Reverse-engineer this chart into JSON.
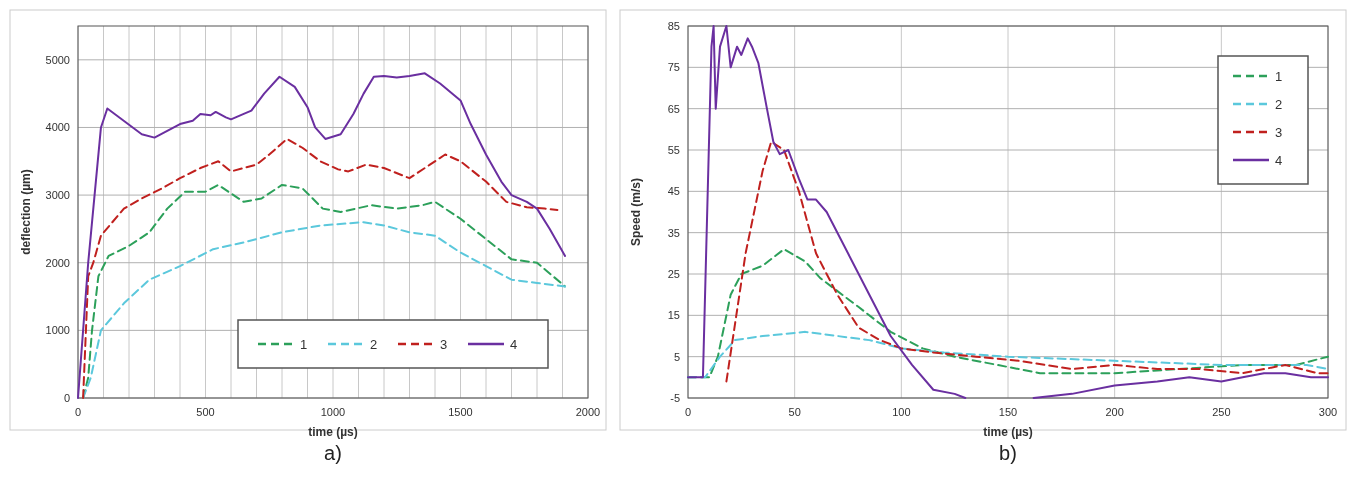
{
  "chart_data": [
    {
      "type": "line",
      "xlabel": "time (µs)",
      "ylabel": "deflection (µm)",
      "annotations": [
        "a)"
      ],
      "xlim": [
        0,
        2000
      ],
      "ylim": [
        0,
        5500
      ],
      "xticks": [
        0,
        {
          "value": 100,
          "label": null
        },
        {
          "value": 200,
          "label": null
        },
        {
          "value": 300,
          "label": null
        },
        {
          "value": 400,
          "label": null
        },
        500,
        {
          "value": 600,
          "label": null
        },
        {
          "value": 700,
          "label": null
        },
        {
          "value": 800,
          "label": null
        },
        {
          "value": 900,
          "label": null
        },
        1000,
        {
          "value": 1100,
          "label": null
        },
        {
          "value": 1200,
          "label": null
        },
        {
          "value": 1300,
          "label": null
        },
        {
          "value": 1400,
          "label": null
        },
        1500,
        {
          "value": 1600,
          "label": null
        },
        {
          "value": 1700,
          "label": null
        },
        {
          "value": 1800,
          "label": null
        },
        {
          "value": 1900,
          "label": null
        },
        2000
      ],
      "yticks": [
        0,
        1000,
        2000,
        3000,
        4000,
        5000
      ],
      "grid": true,
      "legend": "bottom",
      "series": [
        {
          "name": "1",
          "color": "#2ca05a",
          "line_style": "dashed",
          "x": [
            20,
            40,
            55,
            80,
            120,
            200,
            280,
            350,
            420,
            500,
            550,
            650,
            720,
            800,
            880,
            960,
            1030,
            1150,
            1250,
            1350,
            1400,
            1500,
            1600,
            1700,
            1800,
            1910
          ],
          "values": [
            0,
            300,
            1000,
            1800,
            2100,
            2250,
            2450,
            2800,
            3050,
            3050,
            3150,
            2900,
            2950,
            3150,
            3100,
            2800,
            2750,
            2850,
            2800,
            2850,
            2900,
            2650,
            2350,
            2050,
            2000,
            1650
          ]
        },
        {
          "name": "2",
          "color": "#5bc8dc",
          "line_style": "dashed",
          "x": [
            20,
            50,
            90,
            180,
            280,
            400,
            530,
            650,
            800,
            950,
            1120,
            1200,
            1300,
            1400,
            1500,
            1600,
            1700,
            1800,
            1910
          ],
          "values": [
            0,
            300,
            1000,
            1400,
            1750,
            1950,
            2200,
            2300,
            2450,
            2550,
            2600,
            2550,
            2450,
            2400,
            2150,
            1950,
            1750,
            1700,
            1650
          ]
        },
        {
          "name": "3",
          "color": "#c0201e",
          "line_style": "dashed",
          "x": [
            20,
            40,
            60,
            90,
            180,
            250,
            330,
            400,
            480,
            550,
            600,
            700,
            750,
            820,
            880,
            950,
            1020,
            1060,
            1130,
            1200,
            1300,
            1380,
            1440,
            1500,
            1600,
            1680,
            1760,
            1830,
            1880
          ],
          "values": [
            0,
            1800,
            2000,
            2400,
            2800,
            2950,
            3100,
            3250,
            3400,
            3500,
            3350,
            3450,
            3600,
            3830,
            3700,
            3500,
            3380,
            3350,
            3450,
            3400,
            3250,
            3450,
            3600,
            3500,
            3200,
            2900,
            2820,
            2800,
            2780
          ]
        },
        {
          "name": "4",
          "color": "#6a2fa0",
          "line_style": "solid",
          "x": [
            0,
            40,
            90,
            115,
            250,
            300,
            350,
            400,
            450,
            480,
            520,
            540,
            580,
            600,
            650,
            680,
            730,
            790,
            850,
            900,
            930,
            970,
            1030,
            1080,
            1120,
            1160,
            1200,
            1250,
            1300,
            1360,
            1420,
            1500,
            1540,
            1600,
            1660,
            1700,
            1760,
            1800,
            1850,
            1910
          ],
          "values": [
            0,
            2000,
            4000,
            4280,
            3900,
            3850,
            3950,
            4050,
            4100,
            4200,
            4180,
            4230,
            4150,
            4120,
            4200,
            4250,
            4500,
            4750,
            4600,
            4300,
            4000,
            3830,
            3900,
            4200,
            4500,
            4750,
            4760,
            4740,
            4760,
            4800,
            4650,
            4400,
            4050,
            3600,
            3200,
            3000,
            2900,
            2800,
            2500,
            2100
          ]
        }
      ]
    },
    {
      "type": "line",
      "xlabel": "time (µs)",
      "ylabel": "Speed (m/s)",
      "annotations": [
        "b)"
      ],
      "xlim": [
        0,
        300
      ],
      "ylim": [
        -5,
        85
      ],
      "xticks": [
        0,
        50,
        100,
        150,
        200,
        250,
        300
      ],
      "yticks": [
        -5,
        5,
        15,
        25,
        35,
        45,
        55,
        65,
        75,
        85
      ],
      "grid": true,
      "legend": "top right",
      "series": [
        {
          "name": "1",
          "color": "#2ca05a",
          "line_style": "dashed",
          "x": [
            0,
            10,
            14,
            20,
            25,
            35,
            45,
            55,
            62,
            80,
            95,
            110,
            125,
            145,
            165,
            200,
            230,
            260,
            285,
            300
          ],
          "values": [
            0,
            0,
            5,
            20,
            25,
            27,
            31,
            28,
            24,
            17,
            11,
            7,
            5,
            3,
            1,
            1,
            2,
            3,
            3,
            5
          ]
        },
        {
          "name": "2",
          "color": "#5bc8dc",
          "line_style": "dashed",
          "x": [
            0,
            8,
            15,
            22,
            35,
            55,
            70,
            85,
            100,
            120,
            150,
            200,
            250,
            290,
            300
          ],
          "values": [
            0,
            0,
            5,
            9,
            10,
            11,
            10,
            9,
            7,
            6,
            5,
            4,
            3,
            3,
            2
          ]
        },
        {
          "name": "3",
          "color": "#c0201e",
          "line_style": "dashed",
          "x": [
            18,
            27,
            35,
            39,
            45,
            52,
            60,
            70,
            80,
            90,
            100,
            115,
            135,
            155,
            180,
            200,
            220,
            240,
            260,
            280,
            295,
            300
          ],
          "values": [
            -1,
            30,
            50,
            57,
            55,
            45,
            30,
            20,
            12,
            9,
            7,
            6,
            5,
            4,
            2,
            3,
            2,
            2,
            1,
            3,
            1,
            1
          ]
        },
        {
          "name": "4",
          "color": "#6a2fa0",
          "line_style": "solid",
          "x": [
            0,
            7,
            11,
            12,
            13,
            15,
            18,
            20,
            23,
            25,
            28,
            30,
            33,
            37,
            40,
            43,
            47,
            52,
            56,
            60,
            65,
            75,
            85,
            95,
            105,
            115,
            125,
            130,
            145,
            162,
            180,
            200,
            220,
            235,
            250,
            260,
            270,
            280,
            292,
            300
          ],
          "values": [
            0,
            0,
            80,
            85,
            65,
            80,
            85,
            75,
            80,
            78,
            82,
            80,
            76,
            65,
            57,
            54,
            55,
            48,
            43,
            43,
            40,
            30,
            20,
            10,
            3,
            -3,
            -4,
            -5,
            null,
            -5,
            -4,
            -2,
            -1,
            0,
            -1,
            0,
            1,
            1,
            0,
            0
          ]
        }
      ]
    }
  ]
}
